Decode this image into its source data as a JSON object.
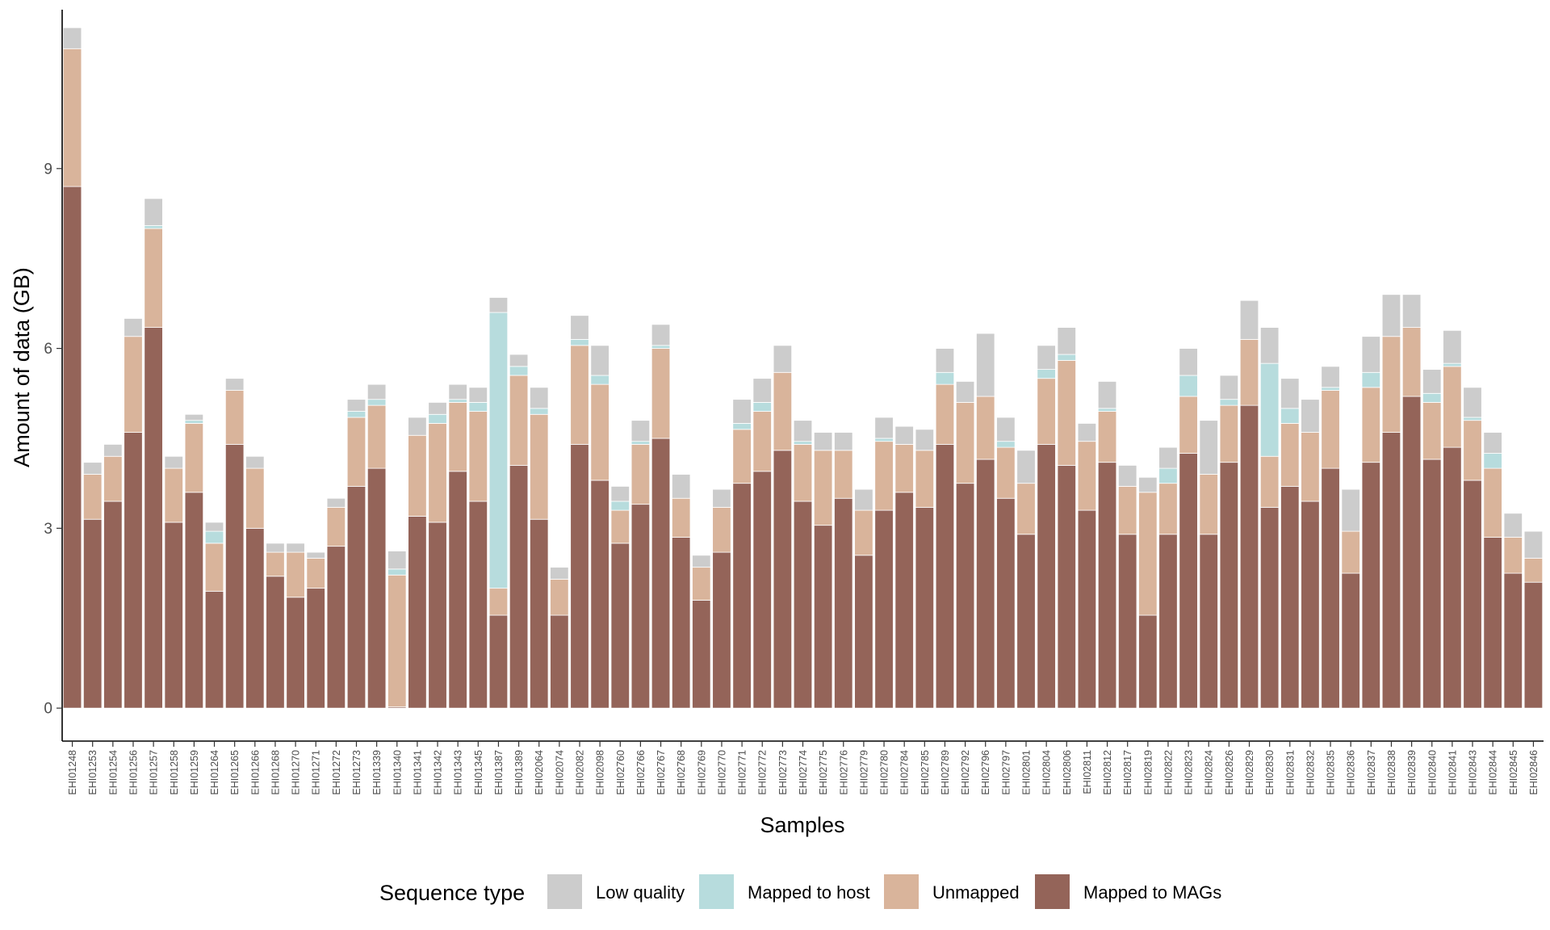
{
  "chart_data": {
    "type": "bar",
    "stacked": true,
    "xlabel": "Samples",
    "ylabel": "Amount of data (GB)",
    "ylim": [
      -0.55,
      11.65
    ],
    "yticks": [
      0,
      3,
      6,
      9
    ],
    "grid": false,
    "legend": {
      "title": "Sequence type",
      "position": "bottom",
      "entries": [
        "Low quality",
        "Mapped to host",
        "Unmapped",
        "Mapped to MAGs"
      ]
    },
    "categories": [
      "EHI01248",
      "EHI01253",
      "EHI01254",
      "EHI01256",
      "EHI01257",
      "EHI01258",
      "EHI01259",
      "EHI01264",
      "EHI01265",
      "EHI01266",
      "EHI01268",
      "EHI01270",
      "EHI01271",
      "EHI01272",
      "EHI01273",
      "EHI01339",
      "EHI01340",
      "EHI01341",
      "EHI01342",
      "EHI01343",
      "EHI01345",
      "EHI01387",
      "EHI01389",
      "EHI02064",
      "EHI02074",
      "EHI02082",
      "EHI02098",
      "EHI02760",
      "EHI02766",
      "EHI02767",
      "EHI02768",
      "EHI02769",
      "EHI02770",
      "EHI02771",
      "EHI02772",
      "EHI02773",
      "EHI02774",
      "EHI02775",
      "EHI02776",
      "EHI02779",
      "EHI02780",
      "EHI02784",
      "EHI02785",
      "EHI02789",
      "EHI02792",
      "EHI02796",
      "EHI02797",
      "EHI02801",
      "EHI02804",
      "EHI02806",
      "EHI02811",
      "EHI02812",
      "EHI02817",
      "EHI02819",
      "EHI02822",
      "EHI02823",
      "EHI02824",
      "EHI02826",
      "EHI02829",
      "EHI02830",
      "EHI02831",
      "EHI02832",
      "EHI02835",
      "EHI02836",
      "EHI02837",
      "EHI02838",
      "EHI02839",
      "EHI02840",
      "EHI02841",
      "EHI02843",
      "EHI02844",
      "EHI02845",
      "EHI02846"
    ],
    "series": [
      {
        "name": "Mapped to MAGs",
        "color": "#946459",
        "values": [
          8.7,
          3.15,
          3.45,
          4.6,
          6.35,
          3.1,
          3.6,
          1.95,
          4.4,
          3.0,
          2.2,
          1.85,
          2.0,
          2.7,
          3.7,
          4.0,
          0.02,
          3.2,
          3.1,
          3.95,
          3.45,
          1.55,
          4.05,
          3.15,
          1.55,
          4.4,
          3.8,
          2.75,
          3.4,
          4.5,
          2.85,
          1.8,
          2.6,
          3.75,
          3.95,
          4.3,
          3.45,
          3.05,
          3.5,
          2.55,
          3.3,
          3.6,
          3.35,
          4.4,
          3.75,
          4.15,
          3.5,
          2.9,
          4.4,
          4.05,
          3.3,
          4.1,
          2.9,
          1.55,
          2.9,
          4.25,
          2.9,
          4.1,
          5.05,
          3.35,
          3.7,
          3.45,
          4.0,
          2.25,
          4.1,
          4.6,
          5.2,
          4.15,
          4.35,
          3.8,
          2.85,
          2.25,
          2.1
        ]
      },
      {
        "name": "Unmapped",
        "color": "#d9b49b",
        "values": [
          2.3,
          0.75,
          0.75,
          1.6,
          1.65,
          0.9,
          1.15,
          0.8,
          0.9,
          1.0,
          0.4,
          0.75,
          0.5,
          0.65,
          1.15,
          1.05,
          2.2,
          1.35,
          1.65,
          1.15,
          1.5,
          0.45,
          1.5,
          1.75,
          0.6,
          1.65,
          1.6,
          0.55,
          1.0,
          1.5,
          0.65,
          0.55,
          0.75,
          0.9,
          1.0,
          1.3,
          0.95,
          1.25,
          0.8,
          0.75,
          1.15,
          0.8,
          0.95,
          1.0,
          1.35,
          1.05,
          0.85,
          0.85,
          1.1,
          1.75,
          1.15,
          0.85,
          0.8,
          2.05,
          0.85,
          0.95,
          1.0,
          0.95,
          1.1,
          0.85,
          1.05,
          1.15,
          1.3,
          0.7,
          1.25,
          1.6,
          1.15,
          0.95,
          1.35,
          1.0,
          1.15,
          0.6,
          0.4
        ]
      },
      {
        "name": "Mapped to host",
        "color": "#b7dcdd",
        "values": [
          0.0,
          0.0,
          0.0,
          0.0,
          0.05,
          0.0,
          0.05,
          0.2,
          0.0,
          0.0,
          0.0,
          0.0,
          0.0,
          0.0,
          0.1,
          0.1,
          0.1,
          0.0,
          0.15,
          0.05,
          0.15,
          4.6,
          0.15,
          0.1,
          0.0,
          0.1,
          0.15,
          0.15,
          0.05,
          0.05,
          0.0,
          0.0,
          0.0,
          0.1,
          0.15,
          0.0,
          0.05,
          0.0,
          0.0,
          0.0,
          0.05,
          0.0,
          0.0,
          0.2,
          0.0,
          0.0,
          0.1,
          0.0,
          0.15,
          0.1,
          0.0,
          0.05,
          0.0,
          0.0,
          0.25,
          0.35,
          0.0,
          0.1,
          0.0,
          1.55,
          0.25,
          0.0,
          0.05,
          0.0,
          0.25,
          0.0,
          0.0,
          0.15,
          0.05,
          0.05,
          0.25,
          0.0,
          0.0
        ]
      },
      {
        "name": "Low quality",
        "color": "#cccccc",
        "values": [
          0.35,
          0.2,
          0.2,
          0.3,
          0.45,
          0.2,
          0.1,
          0.15,
          0.2,
          0.2,
          0.15,
          0.15,
          0.1,
          0.15,
          0.2,
          0.25,
          0.3,
          0.3,
          0.2,
          0.25,
          0.25,
          0.25,
          0.2,
          0.35,
          0.2,
          0.4,
          0.5,
          0.25,
          0.35,
          0.35,
          0.4,
          0.2,
          0.3,
          0.4,
          0.4,
          0.45,
          0.35,
          0.3,
          0.3,
          0.35,
          0.35,
          0.3,
          0.35,
          0.4,
          0.35,
          1.05,
          0.4,
          0.55,
          0.4,
          0.45,
          0.3,
          0.45,
          0.35,
          0.25,
          0.35,
          0.45,
          0.9,
          0.4,
          0.65,
          0.6,
          0.5,
          0.55,
          0.35,
          0.7,
          0.6,
          0.7,
          0.55,
          0.4,
          0.55,
          0.5,
          0.35,
          0.4,
          0.45
        ]
      }
    ]
  }
}
